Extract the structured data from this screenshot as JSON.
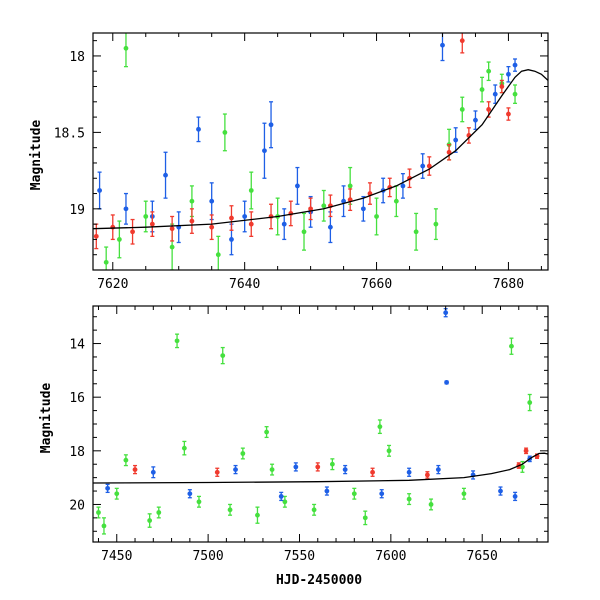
{
  "chart_data": [
    {
      "type": "scatter",
      "panel": "top",
      "title": "",
      "xlabel": "",
      "ylabel": "Magnitude",
      "xlim": [
        7617,
        7686
      ],
      "ylim": [
        19.4,
        17.85
      ],
      "y_inverted": true,
      "grid": false,
      "x_ticks": [
        7620,
        7640,
        7660,
        7680
      ],
      "x_tick_labels": [
        "7620",
        "7640",
        "7660",
        "7680"
      ],
      "y_ticks": [
        18,
        18.5,
        19
      ],
      "y_tick_labels": [
        "18",
        "18.5",
        "19"
      ],
      "model_curve": {
        "color": "#000000",
        "x": [
          7617,
          7625,
          7635,
          7645,
          7652,
          7658,
          7663,
          7668,
          7672,
          7676,
          7679,
          7681,
          7682,
          7683,
          7684,
          7685,
          7686
        ],
        "y": [
          19.13,
          19.12,
          19.1,
          19.05,
          19.0,
          18.93,
          18.85,
          18.74,
          18.62,
          18.45,
          18.26,
          18.14,
          18.1,
          18.09,
          18.1,
          18.12,
          18.16
        ]
      },
      "series": [
        {
          "color": "#1e5fe6",
          "points": [
            {
              "x": 7618,
              "y": 18.88,
              "err": 0.12
            },
            {
              "x": 7622,
              "y": 19.0,
              "err": 0.1
            },
            {
              "x": 7626,
              "y": 19.05,
              "err": 0.1
            },
            {
              "x": 7628,
              "y": 18.78,
              "err": 0.15
            },
            {
              "x": 7630,
              "y": 19.12,
              "err": 0.1
            },
            {
              "x": 7633,
              "y": 18.48,
              "err": 0.08
            },
            {
              "x": 7635,
              "y": 18.95,
              "err": 0.12
            },
            {
              "x": 7638,
              "y": 19.2,
              "err": 0.1
            },
            {
              "x": 7640,
              "y": 19.05,
              "err": 0.1
            },
            {
              "x": 7643,
              "y": 18.62,
              "err": 0.18
            },
            {
              "x": 7644,
              "y": 18.45,
              "err": 0.15
            },
            {
              "x": 7646,
              "y": 19.1,
              "err": 0.1
            },
            {
              "x": 7648,
              "y": 18.85,
              "err": 0.12
            },
            {
              "x": 7650,
              "y": 19.02,
              "err": 0.1
            },
            {
              "x": 7653,
              "y": 19.12,
              "err": 0.1
            },
            {
              "x": 7655,
              "y": 18.95,
              "err": 0.1
            },
            {
              "x": 7658,
              "y": 19.0,
              "err": 0.08
            },
            {
              "x": 7661,
              "y": 18.88,
              "err": 0.08
            },
            {
              "x": 7664,
              "y": 18.85,
              "err": 0.08
            },
            {
              "x": 7667,
              "y": 18.72,
              "err": 0.08
            },
            {
              "x": 7670,
              "y": 17.93,
              "err": 0.1
            },
            {
              "x": 7672,
              "y": 18.55,
              "err": 0.08
            },
            {
              "x": 7675,
              "y": 18.42,
              "err": 0.06
            },
            {
              "x": 7678,
              "y": 18.25,
              "err": 0.06
            },
            {
              "x": 7680,
              "y": 18.12,
              "err": 0.05
            },
            {
              "x": 7681,
              "y": 18.06,
              "err": 0.04
            }
          ]
        },
        {
          "color": "#45e03e",
          "points": [
            {
              "x": 7619,
              "y": 19.35,
              "err": 0.1
            },
            {
              "x": 7621,
              "y": 19.2,
              "err": 0.12
            },
            {
              "x": 7622,
              "y": 17.95,
              "err": 0.12
            },
            {
              "x": 7625,
              "y": 19.05,
              "err": 0.1
            },
            {
              "x": 7629,
              "y": 19.25,
              "err": 0.15
            },
            {
              "x": 7632,
              "y": 18.95,
              "err": 0.1
            },
            {
              "x": 7636,
              "y": 19.3,
              "err": 0.12
            },
            {
              "x": 7637,
              "y": 18.5,
              "err": 0.12
            },
            {
              "x": 7641,
              "y": 18.88,
              "err": 0.12
            },
            {
              "x": 7645,
              "y": 19.05,
              "err": 0.12
            },
            {
              "x": 7649,
              "y": 19.15,
              "err": 0.12
            },
            {
              "x": 7652,
              "y": 18.98,
              "err": 0.1
            },
            {
              "x": 7656,
              "y": 18.85,
              "err": 0.12
            },
            {
              "x": 7660,
              "y": 19.05,
              "err": 0.12
            },
            {
              "x": 7663,
              "y": 18.95,
              "err": 0.1
            },
            {
              "x": 7666,
              "y": 19.15,
              "err": 0.12
            },
            {
              "x": 7669,
              "y": 19.1,
              "err": 0.1
            },
            {
              "x": 7671,
              "y": 18.58,
              "err": 0.1
            },
            {
              "x": 7673,
              "y": 18.35,
              "err": 0.08
            },
            {
              "x": 7676,
              "y": 18.22,
              "err": 0.08
            },
            {
              "x": 7677,
              "y": 18.1,
              "err": 0.06
            },
            {
              "x": 7679,
              "y": 18.18,
              "err": 0.06
            },
            {
              "x": 7681,
              "y": 18.25,
              "err": 0.06
            }
          ]
        },
        {
          "color": "#f03a2e",
          "points": [
            {
              "x": 7617.5,
              "y": 19.18,
              "err": 0.08
            },
            {
              "x": 7620,
              "y": 19.12,
              "err": 0.08
            },
            {
              "x": 7623,
              "y": 19.15,
              "err": 0.08
            },
            {
              "x": 7626,
              "y": 19.1,
              "err": 0.08
            },
            {
              "x": 7629,
              "y": 19.13,
              "err": 0.08
            },
            {
              "x": 7632,
              "y": 19.08,
              "err": 0.08
            },
            {
              "x": 7635,
              "y": 19.12,
              "err": 0.08
            },
            {
              "x": 7638,
              "y": 19.06,
              "err": 0.08
            },
            {
              "x": 7641,
              "y": 19.1,
              "err": 0.08
            },
            {
              "x": 7644,
              "y": 19.05,
              "err": 0.08
            },
            {
              "x": 7647,
              "y": 19.03,
              "err": 0.08
            },
            {
              "x": 7650,
              "y": 19.0,
              "err": 0.07
            },
            {
              "x": 7653,
              "y": 18.98,
              "err": 0.07
            },
            {
              "x": 7656,
              "y": 18.94,
              "err": 0.07
            },
            {
              "x": 7659,
              "y": 18.9,
              "err": 0.07
            },
            {
              "x": 7662,
              "y": 18.86,
              "err": 0.06
            },
            {
              "x": 7665,
              "y": 18.8,
              "err": 0.06
            },
            {
              "x": 7668,
              "y": 18.72,
              "err": 0.06
            },
            {
              "x": 7671,
              "y": 18.63,
              "err": 0.05
            },
            {
              "x": 7673,
              "y": 17.9,
              "err": 0.08
            },
            {
              "x": 7674,
              "y": 18.52,
              "err": 0.05
            },
            {
              "x": 7677,
              "y": 18.35,
              "err": 0.05
            },
            {
              "x": 7679,
              "y": 18.2,
              "err": 0.04
            },
            {
              "x": 7680,
              "y": 18.38,
              "err": 0.04
            }
          ]
        }
      ]
    },
    {
      "type": "scatter",
      "panel": "bottom",
      "title": "",
      "xlabel": "HJD-2450000",
      "ylabel": "Magnitude",
      "xlim": [
        7437,
        7686
      ],
      "ylim": [
        21.4,
        12.6
      ],
      "y_inverted": true,
      "grid": false,
      "x_ticks": [
        7450,
        7500,
        7550,
        7600,
        7650
      ],
      "x_tick_labels": [
        "7450",
        "7500",
        "7550",
        "7600",
        "7650"
      ],
      "y_ticks": [
        14,
        16,
        18,
        20
      ],
      "y_tick_labels": [
        "14",
        "16",
        "18",
        "20"
      ],
      "model_curve": {
        "color": "#000000",
        "x": [
          7437,
          7500,
          7560,
          7610,
          7640,
          7655,
          7665,
          7672,
          7677,
          7681,
          7684,
          7686
        ],
        "y": [
          19.2,
          19.18,
          19.15,
          19.1,
          19.0,
          18.85,
          18.7,
          18.5,
          18.25,
          18.1,
          18.09,
          18.12
        ]
      },
      "series": [
        {
          "color": "#45e03e",
          "points": [
            {
              "x": 7440,
              "y": 20.3,
              "err": 0.2
            },
            {
              "x": 7443,
              "y": 20.8,
              "err": 0.3
            },
            {
              "x": 7450,
              "y": 19.6,
              "err": 0.2
            },
            {
              "x": 7455,
              "y": 18.35,
              "err": 0.2
            },
            {
              "x": 7468,
              "y": 20.6,
              "err": 0.25
            },
            {
              "x": 7473,
              "y": 20.3,
              "err": 0.2
            },
            {
              "x": 7483,
              "y": 13.9,
              "err": 0.25
            },
            {
              "x": 7487,
              "y": 17.9,
              "err": 0.25
            },
            {
              "x": 7495,
              "y": 19.9,
              "err": 0.2
            },
            {
              "x": 7508,
              "y": 14.45,
              "err": 0.3
            },
            {
              "x": 7512,
              "y": 20.2,
              "err": 0.2
            },
            {
              "x": 7519,
              "y": 18.1,
              "err": 0.2
            },
            {
              "x": 7527,
              "y": 20.4,
              "err": 0.3
            },
            {
              "x": 7532,
              "y": 17.3,
              "err": 0.2
            },
            {
              "x": 7535,
              "y": 18.7,
              "err": 0.2
            },
            {
              "x": 7542,
              "y": 19.9,
              "err": 0.2
            },
            {
              "x": 7558,
              "y": 20.2,
              "err": 0.2
            },
            {
              "x": 7568,
              "y": 18.5,
              "err": 0.2
            },
            {
              "x": 7580,
              "y": 19.6,
              "err": 0.2
            },
            {
              "x": 7586,
              "y": 20.5,
              "err": 0.25
            },
            {
              "x": 7594,
              "y": 17.1,
              "err": 0.25
            },
            {
              "x": 7599,
              "y": 18.0,
              "err": 0.2
            },
            {
              "x": 7610,
              "y": 19.8,
              "err": 0.2
            },
            {
              "x": 7622,
              "y": 20.0,
              "err": 0.2
            },
            {
              "x": 7640,
              "y": 19.6,
              "err": 0.2
            },
            {
              "x": 7666,
              "y": 14.1,
              "err": 0.3
            },
            {
              "x": 7672,
              "y": 18.6,
              "err": 0.2
            },
            {
              "x": 7676,
              "y": 16.2,
              "err": 0.3
            }
          ]
        },
        {
          "color": "#1e5fe6",
          "points": [
            {
              "x": 7445,
              "y": 19.4,
              "err": 0.15
            },
            {
              "x": 7470,
              "y": 18.8,
              "err": 0.2
            },
            {
              "x": 7490,
              "y": 19.6,
              "err": 0.15
            },
            {
              "x": 7515,
              "y": 18.7,
              "err": 0.15
            },
            {
              "x": 7540,
              "y": 19.7,
              "err": 0.15
            },
            {
              "x": 7548,
              "y": 18.6,
              "err": 0.15
            },
            {
              "x": 7565,
              "y": 19.5,
              "err": 0.15
            },
            {
              "x": 7575,
              "y": 18.7,
              "err": 0.15
            },
            {
              "x": 7595,
              "y": 19.6,
              "err": 0.15
            },
            {
              "x": 7610,
              "y": 18.8,
              "err": 0.15
            },
            {
              "x": 7626,
              "y": 18.7,
              "err": 0.15
            },
            {
              "x": 7630,
              "y": 12.85,
              "err": 0.15
            },
            {
              "x": 7630.5,
              "y": 15.45,
              "err": 0.05
            },
            {
              "x": 7645,
              "y": 18.9,
              "err": 0.15
            },
            {
              "x": 7660,
              "y": 19.5,
              "err": 0.15
            },
            {
              "x": 7668,
              "y": 19.7,
              "err": 0.15
            },
            {
              "x": 7676,
              "y": 18.3,
              "err": 0.1
            }
          ]
        },
        {
          "color": "#f03a2e",
          "points": [
            {
              "x": 7460,
              "y": 18.7,
              "err": 0.15
            },
            {
              "x": 7505,
              "y": 18.8,
              "err": 0.15
            },
            {
              "x": 7560,
              "y": 18.6,
              "err": 0.15
            },
            {
              "x": 7590,
              "y": 18.8,
              "err": 0.15
            },
            {
              "x": 7620,
              "y": 18.9,
              "err": 0.12
            },
            {
              "x": 7670,
              "y": 18.55,
              "err": 0.1
            },
            {
              "x": 7674,
              "y": 18.0,
              "err": 0.1
            },
            {
              "x": 7680,
              "y": 18.2,
              "err": 0.08
            }
          ]
        }
      ]
    }
  ]
}
